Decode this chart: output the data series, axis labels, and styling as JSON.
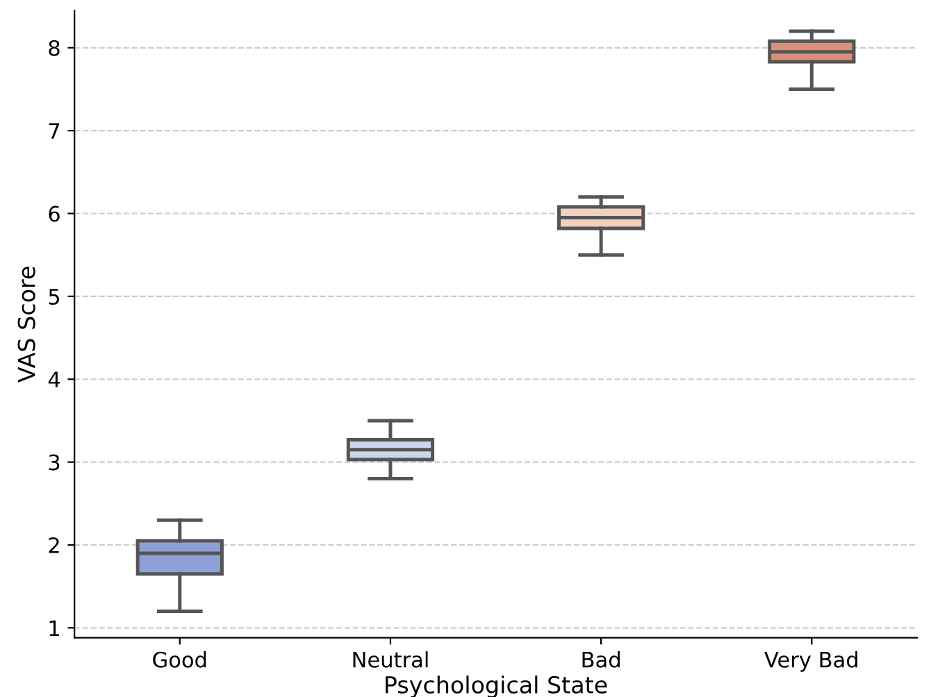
{
  "chart_data": {
    "type": "box",
    "xlabel": "Psychological State",
    "ylabel": "VAS Score",
    "categories": [
      "Good",
      "Neutral",
      "Bad",
      "Very Bad"
    ],
    "colors": [
      "#8d9fd6",
      "#cdd8ee",
      "#f1d0bf",
      "#dc8f78"
    ],
    "boxes": [
      {
        "low": 1.2,
        "q1": 1.65,
        "median": 1.9,
        "q3": 2.05,
        "high": 2.3
      },
      {
        "low": 2.8,
        "q1": 3.03,
        "median": 3.15,
        "q3": 3.27,
        "high": 3.5
      },
      {
        "low": 5.5,
        "q1": 5.82,
        "median": 5.95,
        "q3": 6.08,
        "high": 6.2
      },
      {
        "low": 7.5,
        "q1": 7.83,
        "median": 7.95,
        "q3": 8.08,
        "high": 8.2
      }
    ],
    "ylim": [
      0.88,
      8.45
    ],
    "yticks": [
      1,
      2,
      3,
      4,
      5,
      6,
      7,
      8
    ],
    "grid": "y"
  }
}
